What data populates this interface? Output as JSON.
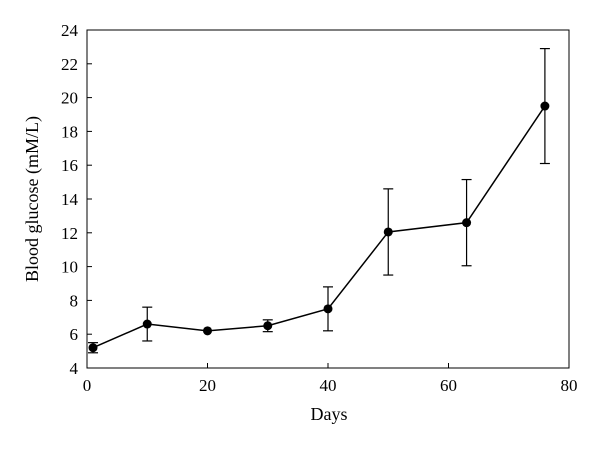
{
  "chart_data": {
    "type": "line",
    "title": "",
    "xlabel": "Days",
    "ylabel": "Blood glucose (mM/L)",
    "xlim": [
      0,
      80
    ],
    "ylim": [
      4,
      24
    ],
    "xticks": [
      0,
      20,
      40,
      60,
      80
    ],
    "yticks": [
      4,
      6,
      8,
      10,
      12,
      14,
      16,
      18,
      20,
      22,
      24
    ],
    "grid": false,
    "legend": "none",
    "series": [
      {
        "points": [
          {
            "x": 1,
            "y": 5.2,
            "err": 0.3
          },
          {
            "x": 10,
            "y": 6.6,
            "err": 1.0
          },
          {
            "x": 20,
            "y": 6.2,
            "err": 0.0
          },
          {
            "x": 30,
            "y": 6.5,
            "err": 0.35
          },
          {
            "x": 40,
            "y": 7.5,
            "err": 1.3
          },
          {
            "x": 50,
            "y": 12.05,
            "err": 2.55
          },
          {
            "x": 63,
            "y": 12.6,
            "err": 2.55
          },
          {
            "x": 76,
            "y": 19.5,
            "err": 3.4
          }
        ],
        "color": "#000000"
      }
    ]
  }
}
